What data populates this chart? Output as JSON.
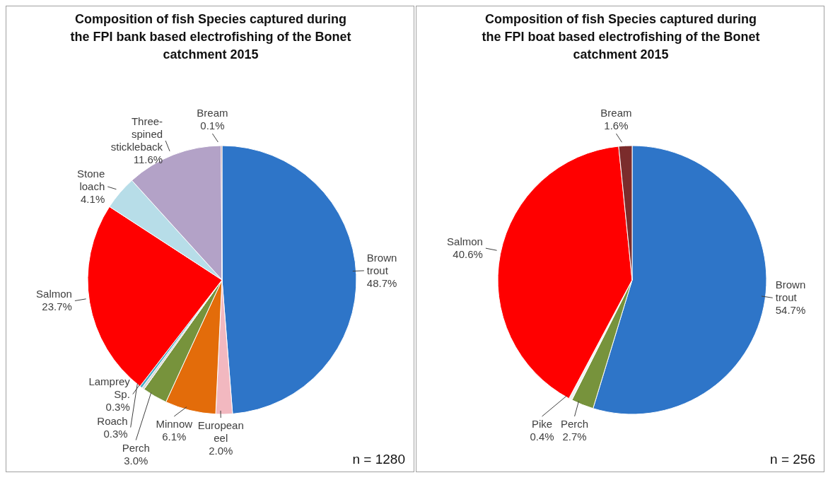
{
  "chart_data": [
    {
      "type": "pie",
      "title": "Composition of fish Species captured during the FPI bank based electrofishing of the Bonet catchment 2015",
      "categories": [
        "Brown trout",
        "European eel",
        "Minnow",
        "Perch",
        "Lamprey Sp.",
        "Roach",
        "Salmon",
        "Stone loach",
        "Three-spined stickleback",
        "Bream"
      ],
      "values": [
        48.7,
        2.0,
        6.1,
        3.0,
        0.3,
        0.3,
        23.7,
        4.1,
        11.6,
        0.1
      ],
      "colors": [
        "#2e75c8",
        "#f2b8c0",
        "#e36c0a",
        "#77933c",
        "#d9d9d9",
        "#4bacc6",
        "#ff0000",
        "#b7dde8",
        "#b3a2c7",
        "#7b2c2c"
      ],
      "value_labels": [
        "48.7%",
        "2.0%",
        "6.1%",
        "3.0%",
        "0.3%",
        "0.3%",
        "23.7%",
        "4.1%",
        "11.6%",
        "0.1%"
      ],
      "annotations": [
        "n = 1280"
      ]
    },
    {
      "type": "pie",
      "title": "Composition of fish Species captured during the FPI boat based electrofishing of the Bonet catchment 2015",
      "categories": [
        "Brown trout",
        "Perch",
        "Pike",
        "Salmon",
        "Bream"
      ],
      "values": [
        54.7,
        2.7,
        0.4,
        40.6,
        1.6
      ],
      "colors": [
        "#2e75c8",
        "#77933c",
        "#f2f2f2",
        "#ff0000",
        "#7b2c2c"
      ],
      "value_labels": [
        "54.7%",
        "2.7%",
        "0.4%",
        "40.6%",
        "1.6%"
      ],
      "annotations": [
        "n = 256"
      ]
    }
  ]
}
